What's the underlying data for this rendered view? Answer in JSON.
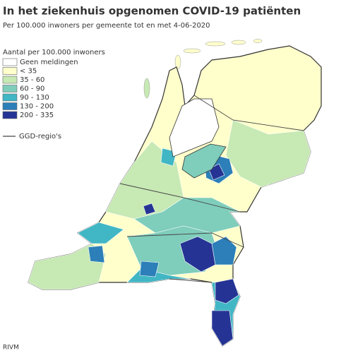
{
  "header": {
    "title": "In het ziekenhuis opgenomen COVID-19 patiënten",
    "subtitle": "Per 100.000 inwoners per gemeente tot en met 4-06-2020"
  },
  "legend": {
    "title": "Aantal per 100.000 inwoners",
    "items": [
      {
        "label": "Geen meldingen",
        "color": "#ffffff"
      },
      {
        "label": "< 35",
        "color": "#ffffcc"
      },
      {
        "label": "35 - 60",
        "color": "#c7e9b4"
      },
      {
        "label": "60 - 90",
        "color": "#7fcdbb"
      },
      {
        "label": "90 - 130",
        "color": "#41b6c4"
      },
      {
        "label": "130 - 200",
        "color": "#2c7fb8"
      },
      {
        "label": "200 - 335",
        "color": "#253494"
      }
    ],
    "region_line": "GGD-regio's"
  },
  "footer": {
    "source": "RIVM"
  }
}
